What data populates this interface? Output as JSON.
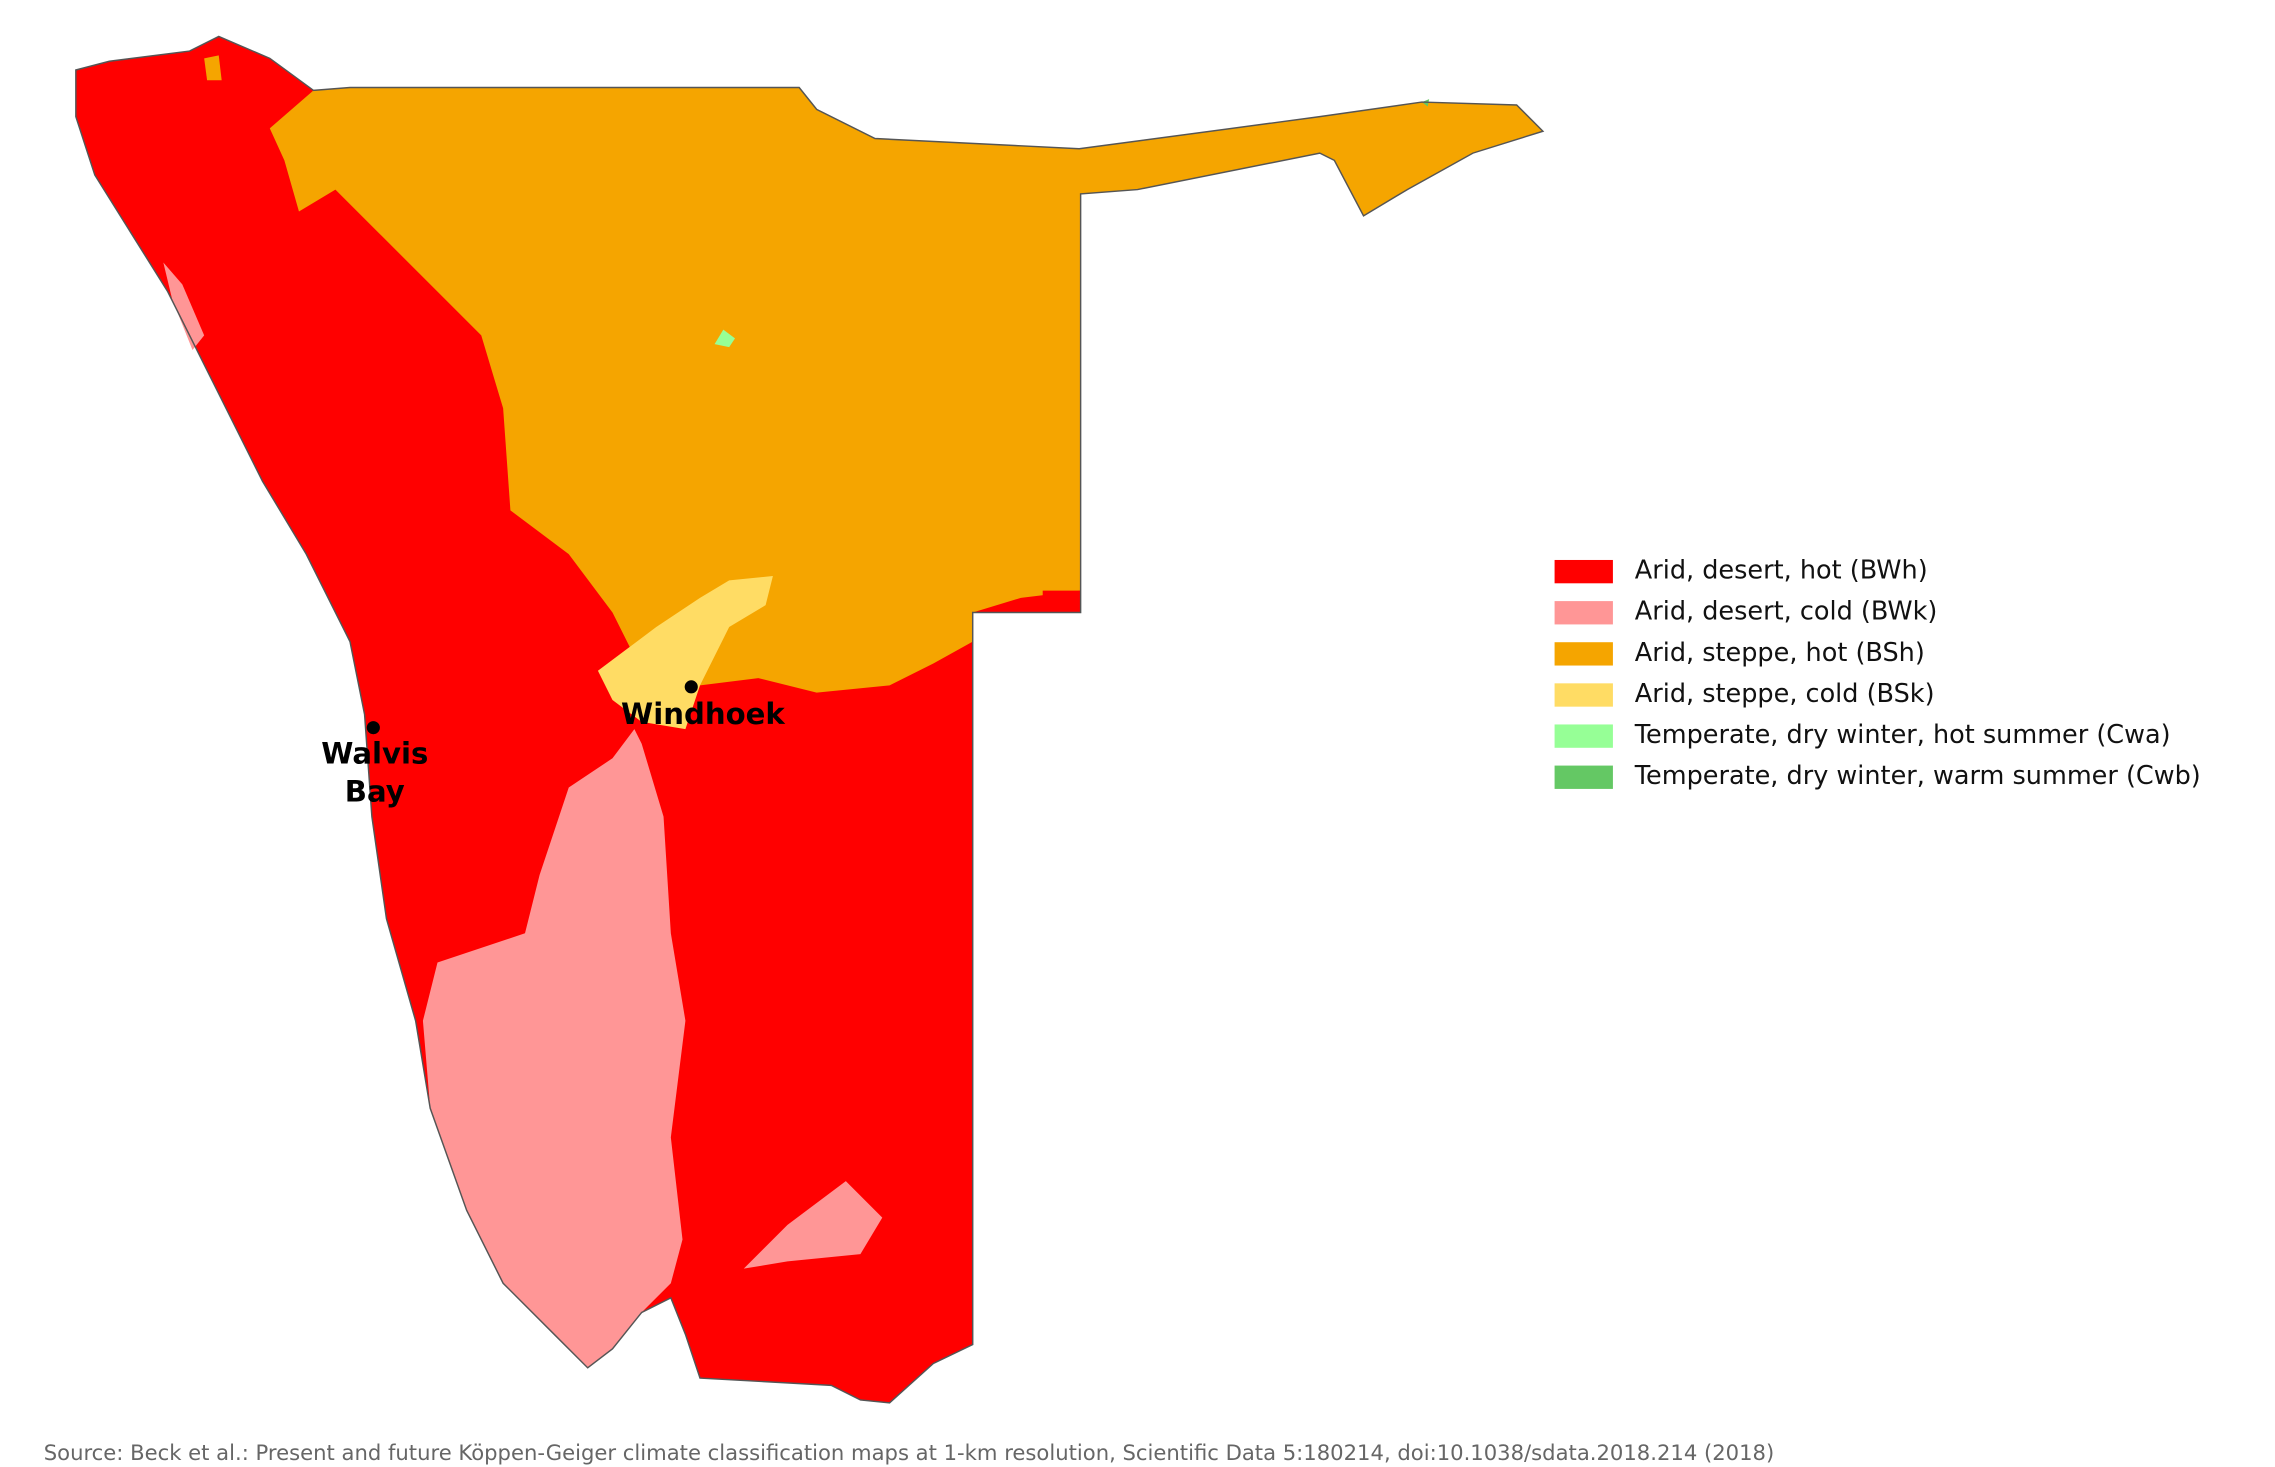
{
  "map": {
    "legend": [
      {
        "name": "Arid, desert, hot (BWh)",
        "color": "#ff0000"
      },
      {
        "name": "Arid, desert, cold (BWk)",
        "color": "#ff9696"
      },
      {
        "name": "Arid, steppe, hot (BSh)",
        "color": "#f5a500"
      },
      {
        "name": "Arid, steppe, cold (BSk)",
        "color": "#ffdc64"
      },
      {
        "name": "Temperate, dry winter, hot summer (Cwa)",
        "color": "#96ff96"
      },
      {
        "name": "Temperate, dry winter, warm summer (Cwb)",
        "color": "#64c864"
      }
    ],
    "cities": [
      {
        "label_lines": [
          "Windhoek"
        ]
      },
      {
        "label_lines": [
          "Walvis",
          "Bay"
        ]
      }
    ],
    "source": "Source: Beck et al.: Present and future Köppen-Geiger climate classification maps at 1-km resolution, Scientific Data 5:180214, doi:10.1038/sdata.2018.214 (2018)"
  }
}
